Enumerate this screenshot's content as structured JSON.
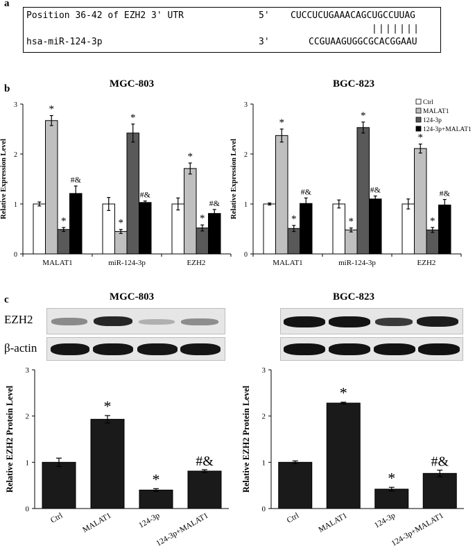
{
  "panel_a": {
    "letter": "a",
    "row1_label": "Position 36-42 of EZH2 3' UTR",
    "row1_end": "5'",
    "row1_seq": "CUCCUCUGAAACAGCUGCCUUAG",
    "pairs": "|||||||",
    "row2_label": "hsa-miR-124-3p",
    "row2_end": "3'",
    "row2_seq": "CCGUAAGUGGCGCACGGAAU"
  },
  "panel_b": {
    "letter": "b"
  },
  "panel_c": {
    "letter": "c",
    "blot_labels": {
      "ezh2": "EZH2",
      "actin": "β-actin"
    },
    "titles": {
      "left": "MGC-803",
      "right": "BGC-823"
    }
  },
  "colors": {
    "ctrl": "#ffffff",
    "malat1": "#bfbfbf",
    "mir": "#595959",
    "combo": "#000000",
    "protein_bar": "#1a1a1a"
  },
  "chart_data": [
    {
      "type": "bar",
      "title": "MGC-803",
      "ylabel": "Relative Expression Level",
      "ylim": [
        0,
        3
      ],
      "yticks": [
        "0",
        "1",
        "2",
        "3"
      ],
      "categories": [
        "MALAT1",
        "miR-124-3p",
        "EZH2"
      ],
      "series": [
        {
          "name": "Ctrl",
          "values": [
            1.0,
            1.0,
            1.0
          ],
          "errors": [
            0.04,
            0.13,
            0.12
          ],
          "marks": [
            "",
            "",
            ""
          ]
        },
        {
          "name": "MALAT1",
          "values": [
            2.67,
            0.45,
            1.71
          ],
          "errors": [
            0.1,
            0.04,
            0.11
          ],
          "marks": [
            "*",
            "*",
            "*"
          ]
        },
        {
          "name": "124-3p",
          "values": [
            0.49,
            2.42,
            0.52
          ],
          "errors": [
            0.04,
            0.18,
            0.06
          ],
          "marks": [
            "*",
            "*",
            "*"
          ]
        },
        {
          "name": "124-3p+MALAT1",
          "values": [
            1.21,
            1.03,
            0.81
          ],
          "errors": [
            0.15,
            0.03,
            0.08
          ],
          "marks": [
            "#&",
            "#&",
            "#&"
          ]
        }
      ],
      "legend": "none"
    },
    {
      "type": "bar",
      "title": "BGC-823",
      "ylabel": "Relative Expression Level",
      "ylim": [
        0,
        3
      ],
      "yticks": [
        "0",
        "1",
        "2",
        "3"
      ],
      "categories": [
        "MALAT1",
        "miR-124-3p",
        "EZH2"
      ],
      "series": [
        {
          "name": "Ctrl",
          "values": [
            1.0,
            1.0,
            1.0
          ],
          "errors": [
            0.02,
            0.08,
            0.1
          ],
          "marks": [
            "",
            "",
            ""
          ]
        },
        {
          "name": "MALAT1",
          "values": [
            2.37,
            0.48,
            2.11
          ],
          "errors": [
            0.13,
            0.04,
            0.09
          ],
          "marks": [
            "*",
            "*",
            "*"
          ]
        },
        {
          "name": "124-3p",
          "values": [
            0.51,
            2.53,
            0.48
          ],
          "errors": [
            0.06,
            0.11,
            0.05
          ],
          "marks": [
            "*",
            "*",
            "*"
          ]
        },
        {
          "name": "124-3p+MALAT1",
          "values": [
            1.01,
            1.1,
            0.98
          ],
          "errors": [
            0.11,
            0.06,
            0.11
          ],
          "marks": [
            "#&",
            "#&",
            "#&"
          ]
        }
      ],
      "legend": "top-right"
    },
    {
      "type": "bar",
      "ylabel": "Relative EZH2 Protein Level",
      "ylim": [
        0,
        3
      ],
      "yticks": [
        "0",
        "1",
        "2",
        "3"
      ],
      "categories": [
        "Ctrl",
        "MALAT1",
        "124-3p",
        "124-3p+MALAT1"
      ],
      "values": [
        1.0,
        1.93,
        0.4,
        0.81
      ],
      "errors": [
        0.09,
        0.08,
        0.03,
        0.03
      ],
      "marks": [
        "",
        "*",
        "*",
        "#&"
      ]
    },
    {
      "type": "bar",
      "ylabel": "Relative EZH2 Protein Level",
      "ylim": [
        0,
        3
      ],
      "yticks": [
        "0",
        "1",
        "2",
        "3"
      ],
      "categories": [
        "Ctrl",
        "MALAT1",
        "124-3p",
        "124-3p+MALAT1"
      ],
      "values": [
        1.0,
        2.28,
        0.42,
        0.76
      ],
      "errors": [
        0.03,
        0.02,
        0.04,
        0.07
      ],
      "marks": [
        "",
        "*",
        "*",
        "#&"
      ]
    }
  ]
}
